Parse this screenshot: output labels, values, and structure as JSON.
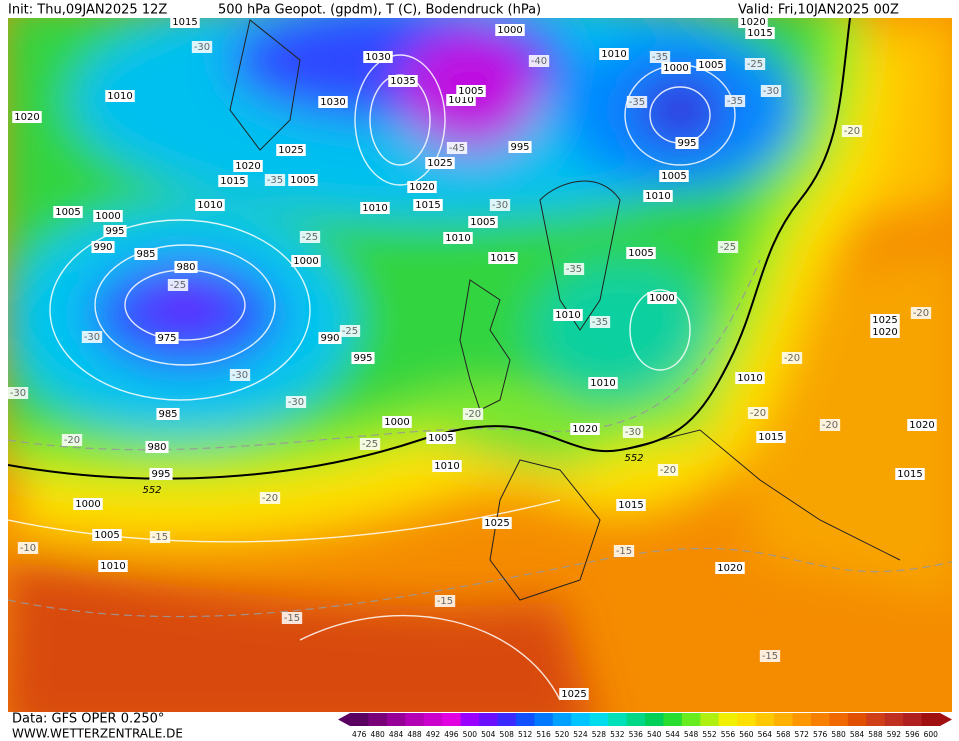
{
  "header": {
    "init": "Init: Thu,09JAN2025 12Z",
    "title": "500 hPa Geopot. (gpdm), T (C), Bodendruck (hPa)",
    "valid": "Valid: Fri,10JAN2025 00Z"
  },
  "map": {
    "isobar_labels": [
      1015,
      1010,
      1020,
      1030,
      1035,
      1030,
      1025,
      1020,
      1015,
      1005,
      1010,
      1005,
      1000,
      995,
      990,
      985,
      980,
      975,
      1000,
      990,
      995,
      985,
      980,
      995,
      1000,
      1005,
      1010,
      1000,
      1005,
      1010,
      1025,
      1020,
      1015,
      1010,
      1005,
      1015,
      1020,
      1025,
      1010,
      1005,
      995,
      1000,
      1010,
      1000,
      1005,
      995,
      1005,
      1010,
      1005,
      1000,
      1010,
      1010,
      1010,
      1015,
      1015,
      1020,
      1025,
      1015,
      1020,
      1025,
      1020,
      1020,
      1015,
      1010
    ],
    "temperature_labels": [
      -30,
      -40,
      -35,
      -25,
      -30,
      -35,
      -35,
      -20,
      -35,
      -45,
      -30,
      -25,
      -25,
      -35,
      -25,
      -30,
      -35,
      -25,
      -30,
      -30,
      -30,
      -20,
      -25,
      -20,
      -20,
      -20,
      -20,
      -20,
      -30,
      -20,
      -20,
      -15,
      -10,
      -15,
      -15,
      -15,
      -15
    ],
    "contour_labels": [
      552,
      552
    ]
  },
  "colorbar": {
    "values": [
      476,
      480,
      484,
      488,
      492,
      496,
      500,
      504,
      508,
      512,
      516,
      520,
      524,
      528,
      532,
      536,
      540,
      544,
      548,
      552,
      556,
      560,
      564,
      568,
      572,
      576,
      580,
      584,
      588,
      592,
      596,
      600
    ],
    "colors": [
      "#5a0060",
      "#780078",
      "#960096",
      "#b400b4",
      "#cc00cc",
      "#e000e0",
      "#9a00ff",
      "#6a10ff",
      "#3a2aff",
      "#1050ff",
      "#0078ff",
      "#00a0ff",
      "#00c4ff",
      "#00dcec",
      "#00e0b8",
      "#00d888",
      "#00d058",
      "#28dc30",
      "#68ec20",
      "#b0f010",
      "#f0f000",
      "#ffe000",
      "#ffc800",
      "#ffb000",
      "#ff9800",
      "#f88000",
      "#f06800",
      "#e05000",
      "#d04018",
      "#c03020",
      "#b02020",
      "#a01010"
    ]
  },
  "footer": {
    "source": "Data: GFS OPER 0.250°",
    "website": "WWW.WETTERZENTRALE.DE"
  }
}
